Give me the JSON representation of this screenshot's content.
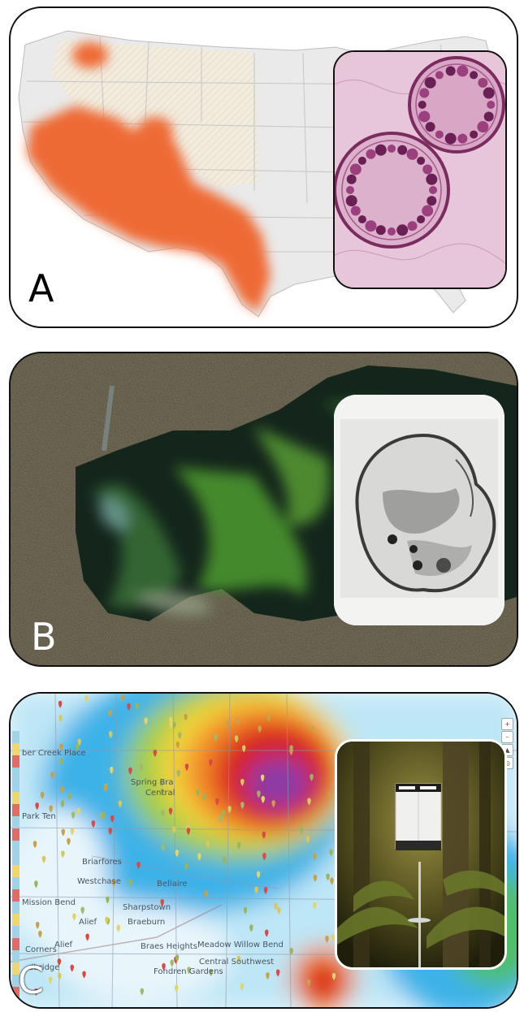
{
  "panels": {
    "a": {
      "label": "A"
    },
    "b": {
      "label": "B"
    },
    "c": {
      "label": "C",
      "map_labels": [
        "ber Creek Place",
        "Spring Bra",
        "Central",
        "Park Ten",
        "Briarfores",
        "Westchase",
        "Sharpstown",
        "Alief",
        "Braeburn",
        "Meadow Willow Bend",
        "Braes Heights",
        "Central Southwest",
        "Fondren Gardens",
        "Mission Bend",
        "Corners",
        "Bellaire",
        "Alief",
        "dbridge"
      ],
      "map_controls": [
        "+",
        "–",
        "▲",
        "◎"
      ]
    }
  },
  "colors": {
    "range_orange": "#ee6a36",
    "hatched_tan": "#efe7d7",
    "algae_green": "#4e9a2e",
    "lake_dark": "#14261c",
    "heat_red": "#d9201f",
    "heat_purple": "#8a3aa8",
    "heat_yellow": "#f2d43a",
    "heat_cyan": "#42b8ea",
    "stain_pink": "#b44b88"
  },
  "icons": [
    "location-pin-icon",
    "zoom-in-icon",
    "zoom-out-icon",
    "compass-icon",
    "locate-icon"
  ]
}
